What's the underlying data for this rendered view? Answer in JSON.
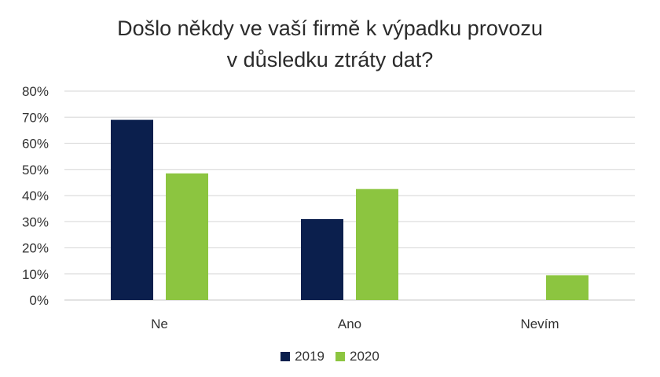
{
  "chart_data": {
    "type": "bar",
    "title_lines": [
      "Došlo někdy ve vaší firmě k výpadku provozu",
      "v důsledku ztráty dat?"
    ],
    "categories": [
      "Ne",
      "Ano",
      "Nevím"
    ],
    "series": [
      {
        "name": "2019",
        "values": [
          69,
          31,
          0
        ],
        "color": "#0b1f4d"
      },
      {
        "name": "2020",
        "values": [
          48.5,
          42.5,
          9.5
        ],
        "color": "#8cc540"
      }
    ],
    "yticks": [
      "0%",
      "10%",
      "20%",
      "30%",
      "40%",
      "50%",
      "60%",
      "70%",
      "80%"
    ],
    "ylim": [
      0,
      80
    ],
    "grid": true,
    "legend_position": "bottom"
  }
}
